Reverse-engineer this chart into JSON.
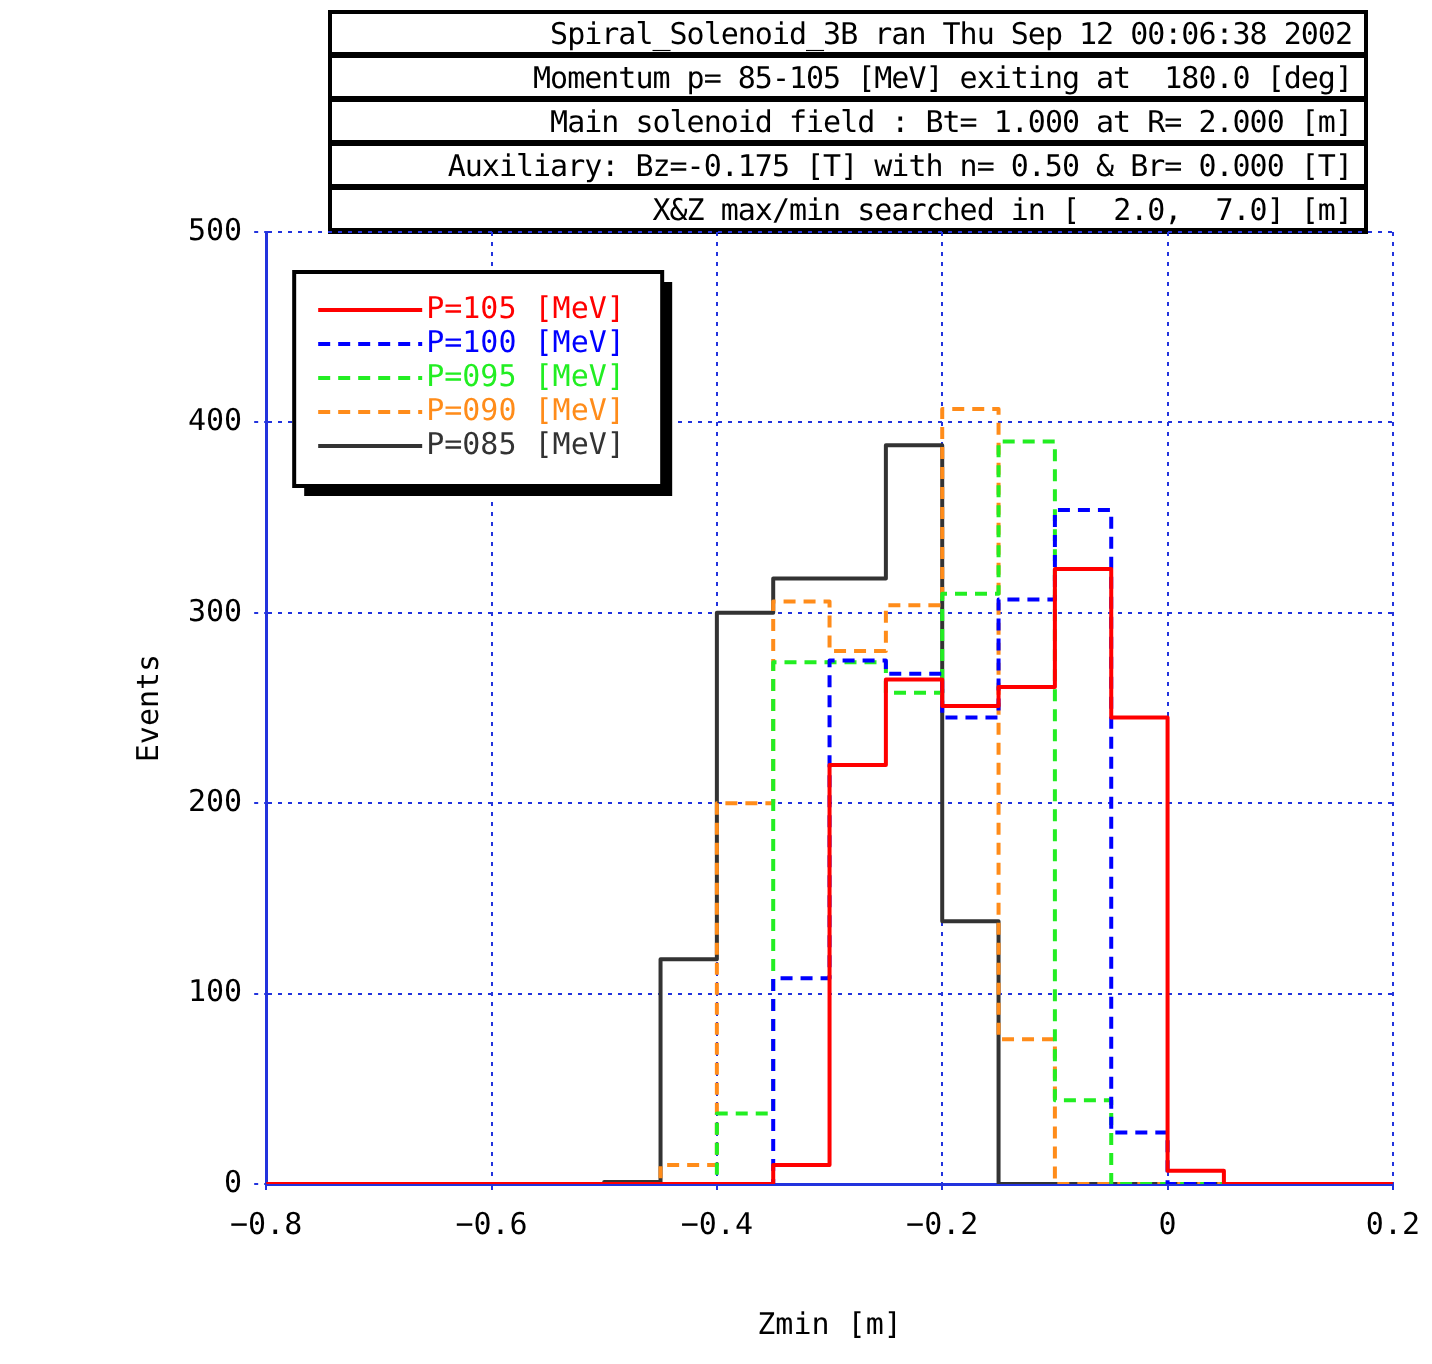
{
  "chart_data": {
    "type": "histogram",
    "title": "Spiral_Solenoid_3B ran Thu Sep 12 00:06:38 2002",
    "annotations": [
      "Momentum p= 85-105 [MeV] exiting at  180.0 [deg]",
      "Main solenoid field : Bt= 1.000 at R= 2.000 [m]",
      "Auxiliary: Bz=-0.175 [T] with n= 0.50 & Br= 0.000 [T]",
      "X&Z max/min searched in [  2.0,  7.0] [m]"
    ],
    "xlabel": "Zmin [m]",
    "ylabel": "Events",
    "bins": [
      -0.8,
      -0.75,
      -0.7,
      -0.65,
      -0.6,
      -0.55,
      -0.5,
      -0.45,
      -0.4,
      -0.35,
      -0.3,
      -0.25,
      -0.2,
      -0.15,
      -0.1,
      -0.05,
      0,
      0.05,
      0.1,
      0.15,
      0.2
    ],
    "series": [
      {
        "name": "P=105 [MeV]",
        "color": "#ff0000",
        "line_style": "solid",
        "values": [
          0,
          0,
          0,
          0,
          0,
          0,
          0,
          0,
          0,
          10,
          220,
          265,
          251,
          261,
          323,
          245,
          7,
          0,
          0,
          0
        ]
      },
      {
        "name": "P=100 [MeV]",
        "color": "#0000ff",
        "line_style": "dashed",
        "values": [
          0,
          0,
          0,
          0,
          0,
          0,
          0,
          0,
          0,
          108,
          275,
          268,
          245,
          307,
          354,
          27,
          0,
          0,
          0,
          0
        ]
      },
      {
        "name": "P=095 [MeV]",
        "color": "#22ee22",
        "line_style": "dashed",
        "values": [
          0,
          0,
          0,
          0,
          0,
          0,
          0,
          0,
          37,
          274,
          274,
          258,
          310,
          390,
          44,
          0,
          0,
          0,
          0,
          0
        ]
      },
      {
        "name": "P=090 [MeV]",
        "color": "#ff8c1a",
        "line_style": "dashed",
        "values": [
          0,
          0,
          0,
          0,
          0,
          0,
          0,
          10,
          200,
          306,
          280,
          304,
          407,
          76,
          0,
          0,
          0,
          0,
          0,
          0
        ]
      },
      {
        "name": "P=085 [MeV]",
        "color": "#333333",
        "line_style": "solid",
        "values": [
          0,
          0,
          0,
          0,
          0,
          0,
          1,
          118,
          300,
          318,
          318,
          388,
          138,
          0,
          0,
          0,
          0,
          0,
          0,
          0
        ]
      }
    ],
    "xlim": [
      -0.8,
      0.2
    ],
    "xticks": [
      {
        "value": -0.8,
        "label": "−0.8"
      },
      {
        "value": -0.6,
        "label": "−0.6"
      },
      {
        "value": -0.4,
        "label": "−0.4"
      },
      {
        "value": -0.2,
        "label": "−0.2"
      },
      0,
      0.2
    ],
    "ylim": [
      0,
      500
    ],
    "yticks": [
      0,
      100,
      200,
      300,
      400,
      500
    ],
    "grid": true,
    "legend": "top left"
  }
}
